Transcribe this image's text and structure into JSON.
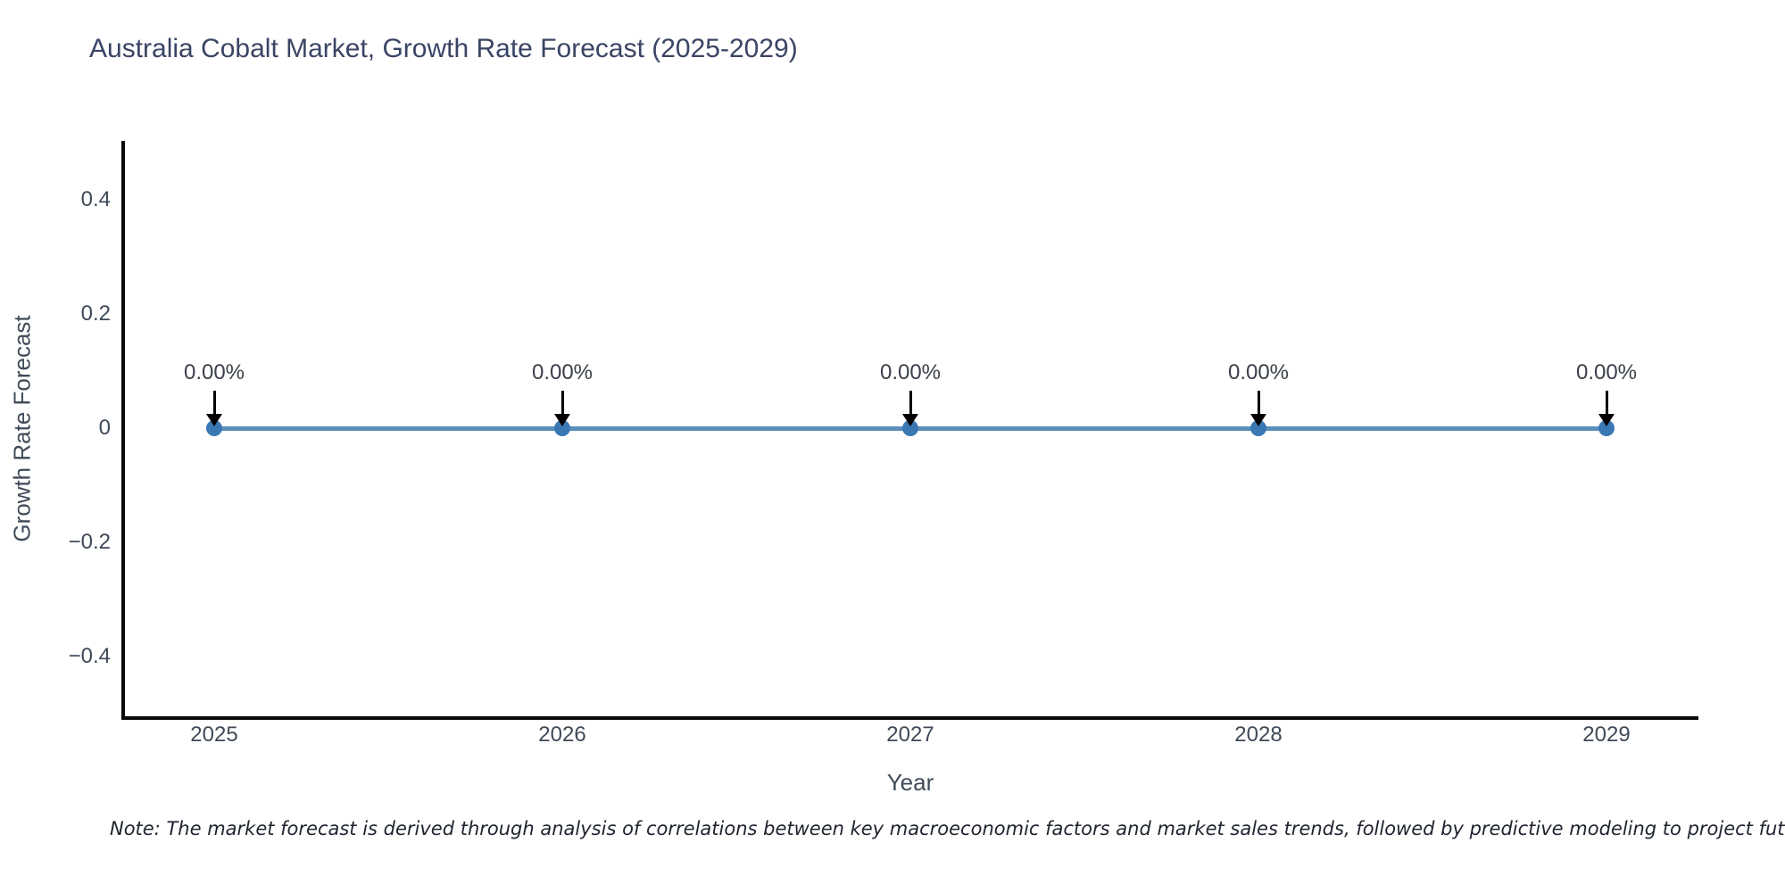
{
  "title": "Australia Cobalt Market, Growth Rate Forecast (2025-2029)",
  "note": "Note: The market forecast is derived through analysis of correlations between key macroeconomic factors and market sales trends, followed by predictive modeling to project future sales",
  "chart_data": {
    "type": "line",
    "title": "Australia Cobalt Market, Growth Rate Forecast (2025-2029)",
    "xlabel": "Year",
    "ylabel": "Growth Rate Forecast",
    "x": [
      "2025",
      "2026",
      "2027",
      "2028",
      "2029"
    ],
    "values": [
      0,
      0,
      0,
      0,
      0
    ],
    "point_labels": [
      "0.00%",
      "0.00%",
      "0.00%",
      "0.00%",
      "0.00%"
    ],
    "yticks": [
      {
        "value": 0.4,
        "label": "0.4"
      },
      {
        "value": 0.2,
        "label": "0.2"
      },
      {
        "value": 0,
        "label": "0"
      },
      {
        "value": -0.2,
        "label": "−0.2"
      },
      {
        "value": -0.4,
        "label": "−0.4"
      }
    ],
    "ylim": [
      -0.5,
      0.5
    ],
    "grid": false,
    "legend": "none",
    "line_color": "#5b8fbb",
    "marker_color": "#3a78b4",
    "arrow_color": "#000000",
    "axis_color": "#0a0a0a"
  }
}
